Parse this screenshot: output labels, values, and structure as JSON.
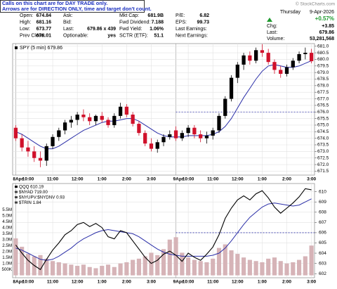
{
  "note": [
    "Calls on this chart are for DAY TRADE only.",
    "Arrows are for DIRECTION ONLY, time and target don't count."
  ],
  "copyright": "© StockCharts.com",
  "quote": {
    "columns": [
      [
        [
          "Open:",
          "674.84"
        ],
        [
          "High:",
          "681.16"
        ],
        [
          "Low:",
          "673.77"
        ],
        [
          "Prev Close:",
          "676.01"
        ]
      ],
      [
        [
          "Ask:"
        ],
        [
          "Bid:"
        ],
        [
          "Last:",
          "679.86 x 439"
        ],
        [
          "Optionable:",
          "yes"
        ]
      ],
      [
        [
          "Mkt Cap:",
          "681.9B"
        ],
        [
          "Fwd Dividend:",
          "7.188"
        ],
        [
          "Fwd Yield:",
          "1.06%"
        ],
        [
          "SCTR (ETF):",
          "51.1"
        ]
      ],
      [
        [
          "P/E:",
          "6.82"
        ],
        [
          "EPS:",
          "99.73"
        ],
        [
          "Last Earnings:"
        ],
        [
          "Next Earnings:"
        ]
      ]
    ],
    "weekday": "Thursday",
    "date": "9-Apr-2026",
    "pct_change": "+0.57%",
    "chg_label": "Chg:",
    "chg": "+3.85",
    "last_label": "Last:",
    "last": "679.86",
    "volume_label": "Volume:",
    "volume": "53,281,568"
  },
  "chart_data": [
    {
      "type": "candlestick",
      "title": "SPY (5 min) 679.86",
      "up_color": "#000000",
      "down_color": "#d0112b",
      "grid": true,
      "categories": [
        "8Apr",
        null,
        "10:00",
        null,
        null,
        null,
        "11:00",
        null,
        null,
        null,
        "12:00",
        null,
        null,
        null,
        "1:00",
        null,
        null,
        null,
        "2:00",
        null,
        null,
        null,
        "3:00",
        null,
        null,
        null,
        "9Apr",
        null,
        "10:00",
        null,
        null,
        null,
        "11:00",
        null,
        null,
        null,
        "12:00",
        null,
        null,
        null,
        "1:00",
        null,
        null,
        null,
        "2:00",
        null,
        null,
        null,
        "3:00"
      ],
      "open": [
        674.8,
        674.0,
        673.3,
        673.0,
        672.5,
        672.3,
        673.4,
        674.1,
        674.6,
        675.2,
        675.4,
        675.8,
        675.6,
        675.3,
        675.7,
        675.4,
        675.0,
        675.7,
        676.4,
        675.8,
        675.1,
        674.4,
        673.6,
        673.2,
        673.7,
        674.1,
        674.6,
        674.0,
        674.4,
        674.8,
        674.3,
        674.0,
        674.2,
        674.6,
        675.7,
        677.0,
        678.6,
        679.6,
        680.3,
        679.9,
        680.7,
        680.5,
        679.8,
        679.2,
        678.9,
        679.4,
        679.9,
        680.4,
        680.5
      ],
      "high": [
        675.0,
        674.3,
        673.8,
        673.4,
        673.0,
        673.6,
        674.3,
        674.8,
        675.4,
        675.7,
        676.0,
        676.2,
        675.9,
        675.8,
        676.0,
        675.6,
        675.9,
        676.7,
        676.6,
        676.0,
        675.3,
        674.6,
        674.0,
        673.9,
        674.3,
        674.6,
        674.9,
        674.6,
        675.0,
        675.0,
        674.6,
        674.5,
        674.8,
        675.9,
        677.2,
        678.8,
        679.8,
        680.5,
        680.6,
        680.9,
        681.16,
        680.8,
        680.0,
        679.5,
        679.6,
        680.1,
        680.6,
        680.9,
        680.8
      ],
      "low": [
        673.8,
        673.0,
        672.6,
        672.2,
        671.8,
        671.9,
        673.2,
        673.8,
        674.3,
        674.8,
        675.0,
        675.3,
        675.0,
        675.0,
        675.2,
        674.8,
        674.8,
        675.5,
        675.6,
        674.9,
        674.2,
        673.4,
        673.0,
        672.9,
        673.4,
        673.9,
        673.8,
        673.8,
        674.1,
        674.0,
        673.7,
        673.6,
        673.9,
        674.4,
        675.5,
        676.8,
        678.2,
        679.2,
        679.6,
        679.7,
        680.2,
        679.6,
        678.9,
        678.6,
        678.7,
        679.2,
        679.7,
        680.0,
        679.7
      ],
      "close": [
        674.0,
        673.3,
        673.0,
        672.5,
        672.3,
        673.4,
        674.1,
        674.6,
        675.2,
        675.4,
        675.8,
        675.6,
        675.3,
        675.7,
        675.4,
        675.0,
        675.7,
        676.4,
        675.8,
        675.1,
        674.4,
        673.6,
        673.2,
        673.7,
        674.1,
        674.3,
        674.0,
        674.4,
        674.8,
        674.3,
        674.0,
        674.2,
        674.6,
        675.7,
        677.0,
        678.6,
        679.6,
        680.3,
        679.9,
        680.7,
        680.5,
        679.8,
        679.2,
        678.9,
        679.4,
        679.9,
        680.4,
        680.5,
        679.86
      ],
      "ma": {
        "color": "#2b2fa8",
        "values": [
          674.5,
          674.3,
          674.0,
          673.7,
          673.4,
          673.2,
          673.2,
          673.4,
          673.7,
          674.0,
          674.3,
          674.6,
          674.8,
          675.0,
          675.2,
          675.3,
          675.3,
          675.4,
          675.5,
          675.5,
          675.3,
          675.0,
          674.7,
          674.4,
          674.2,
          674.1,
          674.1,
          674.1,
          674.2,
          674.2,
          674.2,
          674.2,
          674.3,
          674.5,
          674.9,
          675.5,
          676.3,
          677.1,
          677.8,
          678.5,
          679.1,
          679.5,
          679.6,
          679.5,
          679.4,
          679.4,
          679.5,
          679.7,
          679.9
        ]
      },
      "reference_line": 676.0,
      "reference_color": "#2b2fa8",
      "ylim": [
        671.2,
        681.2
      ],
      "yticks": [
        671.5,
        {
          "value": 672,
          "label": "672.0"
        },
        672.5,
        {
          "value": 673,
          "label": "673.0"
        },
        673.5,
        {
          "value": 674,
          "label": "674.0"
        },
        674.5,
        {
          "value": 675,
          "label": "675.0"
        },
        675.5,
        {
          "value": 676,
          "label": "676.0"
        },
        676.5,
        {
          "value": 677,
          "label": "677.0"
        },
        677.5,
        {
          "value": 678,
          "label": "678.0"
        },
        678.5,
        {
          "value": 679,
          "label": "679.0"
        },
        679.5,
        {
          "value": 680,
          "label": "680.0"
        },
        680.5,
        {
          "value": 681,
          "label": "681.0"
        }
      ]
    },
    {
      "type": "line",
      "grid": true,
      "categories": [
        "8Apr",
        null,
        "10:00",
        null,
        null,
        null,
        "11:00",
        null,
        null,
        null,
        "12:00",
        null,
        null,
        null,
        "1:00",
        null,
        null,
        null,
        "2:00",
        null,
        null,
        null,
        "3:00",
        null,
        null,
        null,
        "9Apr",
        null,
        "10:00",
        null,
        null,
        null,
        "11:00",
        null,
        null,
        null,
        "12:00",
        null,
        null,
        null,
        "1:00",
        null,
        null,
        null,
        "2:00",
        null,
        null,
        null,
        "3:00"
      ],
      "series": [
        {
          "name": "QQQ 610.19",
          "color": "#000000",
          "axis": "y2",
          "values": [
            604.8,
            604.0,
            603.3,
            602.8,
            602.4,
            603.4,
            604.3,
            605.0,
            605.8,
            606.2,
            606.8,
            607.0,
            606.6,
            606.9,
            606.5,
            605.6,
            605.4,
            606.2,
            606.0,
            605.2,
            604.4,
            603.6,
            603.0,
            603.3,
            603.9,
            604.2,
            603.8,
            603.2,
            604.0,
            603.6,
            603.3,
            603.9,
            604.6,
            605.8,
            607.4,
            608.4,
            609.2,
            609.6,
            609.2,
            609.8,
            610.1,
            609.4,
            608.5,
            607.9,
            608.4,
            608.9,
            609.5,
            610.3,
            610.19
          ]
        },
        {
          "type": "bar",
          "color": "#d6b3b7",
          "axis": "y",
          "values": [
            3100000,
            2400000,
            1800000,
            1600000,
            1700000,
            1400000,
            1200000,
            1100000,
            1000000,
            900000,
            800000,
            900000,
            700000,
            600000,
            800000,
            900000,
            700000,
            1000000,
            1100000,
            1300000,
            1400000,
            1600000,
            1900000,
            1700000,
            2200000,
            3000000,
            3200000,
            1900000,
            1500000,
            1300000,
            1200000,
            1100000,
            1400000,
            2300000,
            2600000,
            2100000,
            1800000,
            1500000,
            1300000,
            1200000,
            1100000,
            1400000,
            1500000,
            1200000,
            1000000,
            1100000,
            1300000,
            1600000,
            2500000
          ]
        }
      ],
      "indicator_labels": [
        "$NYAD 719.00",
        "$NYUPV:$NYDNV 0.93",
        "$TRIN 1.84"
      ],
      "ma": {
        "color": "#2b2fa8",
        "values": [
          604.5,
          604.3,
          604.0,
          603.7,
          603.4,
          603.3,
          603.4,
          603.7,
          604.1,
          604.5,
          605.0,
          605.4,
          605.7,
          606.0,
          606.2,
          606.3,
          606.2,
          606.1,
          606.0,
          605.9,
          605.6,
          605.2,
          604.8,
          604.4,
          604.1,
          603.9,
          603.8,
          603.7,
          603.7,
          603.7,
          603.7,
          603.7,
          603.8,
          604.0,
          604.5,
          605.2,
          606.0,
          606.8,
          607.5,
          608.0,
          608.5,
          608.8,
          608.9,
          608.8,
          608.7,
          608.6,
          608.7,
          609.0,
          609.3
        ]
      },
      "reference_line": 606.0,
      "reference_color": "#2b2fa8",
      "ylim": [
        -200000,
        7700000
      ],
      "yticks": [
        {
          "value": 500000,
          "label": "500K"
        },
        {
          "value": 1000000,
          "label": "1.0M"
        },
        {
          "value": 1500000,
          "label": "1.5M"
        },
        {
          "value": 2000000,
          "label": "2.0M"
        },
        {
          "value": 2500000,
          "label": "2.5M"
        },
        {
          "value": 3000000,
          "label": "3.0M"
        },
        {
          "value": 3500000,
          "label": "3.5M"
        },
        {
          "value": 4000000,
          "label": "4.0M"
        },
        {
          "value": 4500000,
          "label": "4.5M"
        },
        {
          "value": 5000000,
          "label": "5.0M"
        },
        {
          "value": 5500000,
          "label": "5.5M"
        }
      ],
      "y2lim": [
        601.6,
        610.8
      ],
      "y2ticks": [
        602,
        603,
        604,
        605,
        606,
        607,
        608,
        609,
        610
      ]
    }
  ]
}
